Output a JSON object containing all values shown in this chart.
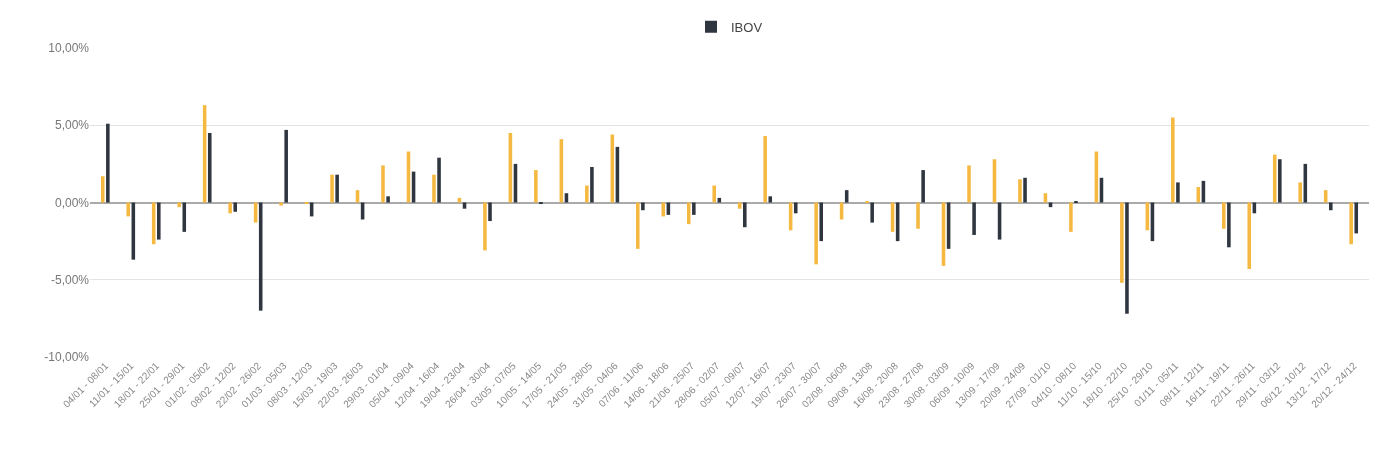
{
  "chart_data": {
    "type": "bar",
    "categories": [
      "04/01 - 08/01",
      "11/01 - 15/01",
      "18/01 - 22/01",
      "25/01 - 29/01",
      "01/02 - 05/02",
      "08/02 - 12/02",
      "22/02 - 26/02",
      "01/03 - 05/03",
      "08/03 - 12/03",
      "15/03 - 19/03",
      "22/03 - 26/03",
      "29/03 - 01/04",
      "05/04 - 09/04",
      "12/04 - 16/04",
      "19/04 - 23/04",
      "26/04 - 30/04",
      "03/05 - 07/05",
      "10/05 - 14/05",
      "17/05 - 21/05",
      "24/05 - 28/05",
      "31/05 - 04/06",
      "07/06 - 11/06",
      "14/06 - 18/06",
      "21/06 - 25/07",
      "28/06 - 02/07",
      "05/07 - 09/07",
      "12/07 - 16/07",
      "19/07 - 23/07",
      "26/07 - 30/07",
      "02/08 - 06/08",
      "09/08 - 13/08",
      "16/08 - 20/08",
      "23/08 - 27/08",
      "30/08 - 03/09",
      "06/09 - 10/09",
      "13/09 - 17/09",
      "20/09 - 24/09",
      "27/09 - 01/10",
      "04/10 - 08/10",
      "11/10 - 15/10",
      "18/10 - 22/10",
      "25/10 - 29/10",
      "01/11 - 05/11",
      "08/11 - 12/11",
      "16/11 - 19/11",
      "22/11 - 26/11",
      "29/11 - 03/12",
      "06/12 - 10/12",
      "13/12 - 17/12",
      "20/12 - 24/12"
    ],
    "series": [
      {
        "color": "#f5b942",
        "values": [
          1.7,
          -0.9,
          -2.7,
          -0.3,
          6.3,
          -0.7,
          -1.3,
          -0.2,
          -0.1,
          1.8,
          0.8,
          2.4,
          3.3,
          1.8,
          0.3,
          -3.1,
          4.5,
          2.1,
          4.1,
          1.1,
          4.4,
          -3.0,
          -0.9,
          -1.4,
          1.1,
          -0.4,
          4.3,
          -1.8,
          -4.0,
          -1.1,
          0.05,
          -1.9,
          -1.7,
          -4.1,
          2.4,
          2.8,
          1.5,
          0.6,
          -1.9,
          3.3,
          -5.2,
          -1.8,
          5.5,
          1.0,
          -1.7,
          -4.3,
          3.1,
          1.3,
          0.8,
          -2.7
        ]
      },
      {
        "name": "IBOV",
        "color": "#2f3640",
        "values": [
          5.1,
          -3.7,
          -2.4,
          -1.9,
          4.5,
          -0.6,
          -7.0,
          4.7,
          -0.9,
          1.8,
          -1.1,
          0.4,
          2.0,
          2.9,
          -0.4,
          -1.2,
          2.5,
          -0.1,
          0.6,
          2.3,
          3.6,
          -0.5,
          -0.8,
          -0.8,
          0.3,
          -1.6,
          0.4,
          -0.7,
          -2.5,
          0.8,
          -1.3,
          -2.5,
          2.1,
          -3.0,
          -2.1,
          -2.4,
          1.6,
          -0.3,
          0.05,
          1.6,
          -7.2,
          -2.5,
          1.3,
          1.4,
          -2.9,
          -0.7,
          2.8,
          2.5,
          -0.5,
          -2.0
        ]
      }
    ],
    "ylim": [
      -10,
      10
    ],
    "yticks": [
      {
        "value": -10,
        "label": "-10,00%"
      },
      {
        "value": -5,
        "label": "-5,00%"
      },
      {
        "value": 0,
        "label": "0,00%"
      },
      {
        "value": 5,
        "label": "5,00%"
      },
      {
        "value": 10,
        "label": "10,00%"
      }
    ],
    "grid": "y",
    "legend": "top"
  }
}
